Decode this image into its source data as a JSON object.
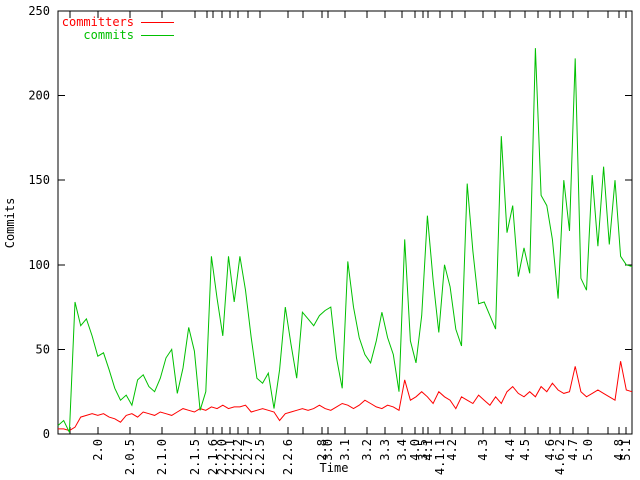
{
  "chart_data": {
    "type": "line",
    "title": "",
    "xlabel": "Time",
    "ylabel": "Commits",
    "ylim": [
      0,
      250
    ],
    "yticks": [
      0,
      50,
      100,
      150,
      200,
      250
    ],
    "grid": false,
    "axis_color": "#000000",
    "legend": {
      "position": "top-left-inside",
      "entries": [
        {
          "label": "committers",
          "color": "#ff0000"
        },
        {
          "label": "commits",
          "color": "#00c000"
        }
      ]
    },
    "xticks": [
      {
        "pos": 0.021,
        "label": ""
      },
      {
        "pos": 0.07,
        "label": "2.0"
      },
      {
        "pos": 0.125,
        "label": "2.0.5"
      },
      {
        "pos": 0.181,
        "label": "2.1.0"
      },
      {
        "pos": 0.239,
        "label": "2.1.5"
      },
      {
        "pos": 0.26,
        "label": ""
      },
      {
        "pos": 0.27,
        "label": "2.1.6"
      },
      {
        "pos": 0.286,
        "label": "2.2.0"
      },
      {
        "pos": 0.3,
        "label": "2.2.1"
      },
      {
        "pos": 0.314,
        "label": "2.2.2"
      },
      {
        "pos": 0.331,
        "label": "2.2.7"
      },
      {
        "pos": 0.352,
        "label": "2.2.5"
      },
      {
        "pos": 0.401,
        "label": "2.2.6"
      },
      {
        "pos": 0.427,
        "label": ""
      },
      {
        "pos": 0.46,
        "label": "2.8"
      },
      {
        "pos": 0.47,
        "label": "3.0"
      },
      {
        "pos": 0.5,
        "label": "3.1"
      },
      {
        "pos": 0.538,
        "label": "3.2"
      },
      {
        "pos": 0.57,
        "label": "3.3"
      },
      {
        "pos": 0.599,
        "label": "3.4"
      },
      {
        "pos": 0.622,
        "label": "4.0"
      },
      {
        "pos": 0.636,
        "label": "3.5"
      },
      {
        "pos": 0.645,
        "label": "4.1"
      },
      {
        "pos": 0.666,
        "label": "4.1.1"
      },
      {
        "pos": 0.686,
        "label": "4.2"
      },
      {
        "pos": 0.709,
        "label": ""
      },
      {
        "pos": 0.74,
        "label": "4.3"
      },
      {
        "pos": 0.761,
        "label": ""
      },
      {
        "pos": 0.787,
        "label": "4.4"
      },
      {
        "pos": 0.814,
        "label": "4.5"
      },
      {
        "pos": 0.836,
        "label": ""
      },
      {
        "pos": 0.857,
        "label": "4.6"
      },
      {
        "pos": 0.875,
        "label": "4.6.2"
      },
      {
        "pos": 0.897,
        "label": "4.7"
      },
      {
        "pos": 0.923,
        "label": "5.0"
      },
      {
        "pos": 0.958,
        "label": ""
      },
      {
        "pos": 0.977,
        "label": "4.8"
      },
      {
        "pos": 0.99,
        "label": "5.1"
      }
    ],
    "series": [
      {
        "name": "committers",
        "color": "#ff0000",
        "values": [
          3,
          3,
          2,
          4,
          10,
          11,
          12,
          11,
          12,
          10,
          9,
          7,
          11,
          12,
          10,
          13,
          12,
          11,
          13,
          12,
          11,
          13,
          15,
          14,
          13,
          15,
          14,
          16,
          15,
          17,
          15,
          16,
          16,
          17,
          13,
          14,
          15,
          14,
          13,
          8,
          12,
          13,
          14,
          15,
          14,
          15,
          17,
          15,
          14,
          16,
          18,
          17,
          15,
          17,
          20,
          18,
          16,
          15,
          17,
          16,
          14,
          32,
          20,
          22,
          25,
          22,
          18,
          25,
          22,
          20,
          15,
          22,
          20,
          18,
          23,
          20,
          17,
          22,
          18,
          25,
          28,
          24,
          22,
          25,
          22,
          28,
          25,
          30,
          26,
          24,
          25,
          40,
          25,
          22,
          24,
          26,
          24,
          22,
          20,
          43,
          26,
          25
        ]
      },
      {
        "name": "commits",
        "color": "#00c000",
        "values": [
          5,
          8,
          1,
          78,
          64,
          68,
          58,
          46,
          48,
          38,
          27,
          20,
          23,
          17,
          32,
          35,
          28,
          25,
          33,
          45,
          50,
          24,
          39,
          63,
          49,
          14,
          25,
          105,
          80,
          58,
          105,
          78,
          105,
          85,
          57,
          33,
          30,
          36,
          15,
          38,
          75,
          53,
          33,
          72,
          68,
          64,
          70,
          73,
          75,
          45,
          27,
          102,
          75,
          57,
          47,
          42,
          55,
          72,
          57,
          47,
          25,
          115,
          55,
          42,
          70,
          129,
          91,
          60,
          100,
          87,
          62,
          52,
          148,
          108,
          77,
          78,
          70,
          62,
          176,
          119,
          135,
          93,
          110,
          95,
          228,
          141,
          135,
          115,
          80,
          150,
          120,
          222,
          92,
          85,
          153,
          111,
          158,
          112,
          150,
          105,
          100,
          99
        ]
      }
    ]
  }
}
